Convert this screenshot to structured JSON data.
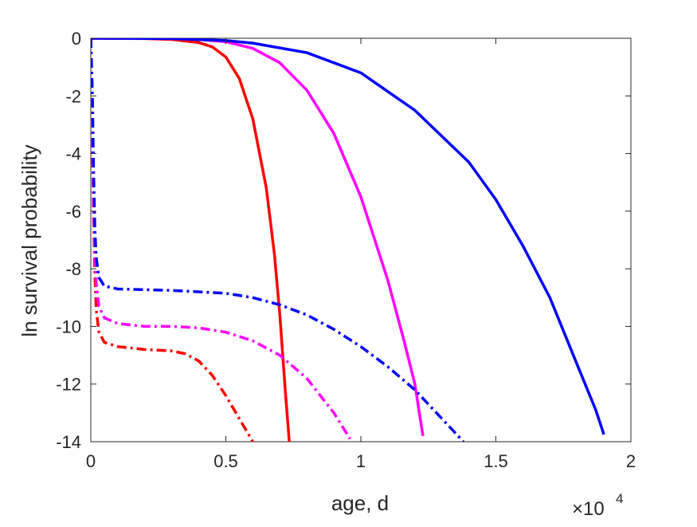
{
  "chart_data": {
    "type": "line",
    "xlabel": "age, d",
    "ylabel": "ln survival probability",
    "xlim": [
      0,
      20000
    ],
    "ylim": [
      -14,
      0
    ],
    "x_exponent_label": {
      "base": "×10",
      "power": "4"
    },
    "xticks": [
      0,
      5000,
      10000,
      15000,
      20000
    ],
    "xtick_labels": [
      "0",
      "0.5",
      "1",
      "1.5",
      "2"
    ],
    "yticks": [
      0,
      -2,
      -4,
      -6,
      -8,
      -10,
      -12,
      -14
    ],
    "ytick_labels": [
      "0",
      "-2",
      "-4",
      "-6",
      "-8",
      "-10",
      "-12",
      "-14"
    ],
    "grid": false,
    "legend": "none",
    "series": [
      {
        "color": "#ff0000",
        "style": "solid",
        "points": [
          [
            0,
            0
          ],
          [
            2000,
            -0.01
          ],
          [
            3000,
            -0.04
          ],
          [
            4000,
            -0.15
          ],
          [
            4500,
            -0.3
          ],
          [
            5000,
            -0.65
          ],
          [
            5500,
            -1.4
          ],
          [
            6000,
            -2.8
          ],
          [
            6500,
            -5.2
          ],
          [
            6800,
            -7.5
          ],
          [
            7000,
            -9.6
          ],
          [
            7200,
            -12.2
          ],
          [
            7350,
            -14
          ]
        ]
      },
      {
        "color": "#ff00ff",
        "style": "solid",
        "points": [
          [
            0,
            0
          ],
          [
            3000,
            -0.01
          ],
          [
            4000,
            -0.04
          ],
          [
            5000,
            -0.12
          ],
          [
            6000,
            -0.35
          ],
          [
            7000,
            -0.85
          ],
          [
            8000,
            -1.8
          ],
          [
            9000,
            -3.3
          ],
          [
            10000,
            -5.5
          ],
          [
            11000,
            -8.4
          ],
          [
            11600,
            -10.5
          ],
          [
            12000,
            -12.0
          ],
          [
            12300,
            -13.8
          ]
        ]
      },
      {
        "color": "#0000ff",
        "style": "solid",
        "points": [
          [
            0,
            0
          ],
          [
            3000,
            -0.01
          ],
          [
            5000,
            -0.08
          ],
          [
            6000,
            -0.17
          ],
          [
            8000,
            -0.5
          ],
          [
            10000,
            -1.2
          ],
          [
            12000,
            -2.5
          ],
          [
            14000,
            -4.3
          ],
          [
            15000,
            -5.6
          ],
          [
            16000,
            -7.2
          ],
          [
            17000,
            -9.0
          ],
          [
            18000,
            -11.3
          ],
          [
            18700,
            -12.9
          ],
          [
            19000,
            -13.75
          ]
        ]
      },
      {
        "color": "#ff0000",
        "style": "dashdot",
        "points": [
          [
            0,
            0
          ],
          [
            50,
            -3
          ],
          [
            100,
            -6
          ],
          [
            150,
            -8.2
          ],
          [
            200,
            -9.4
          ],
          [
            300,
            -10.2
          ],
          [
            500,
            -10.55
          ],
          [
            1000,
            -10.7
          ],
          [
            2000,
            -10.8
          ],
          [
            3000,
            -10.85
          ],
          [
            3500,
            -10.95
          ],
          [
            4000,
            -11.2
          ],
          [
            4500,
            -11.7
          ],
          [
            5000,
            -12.4
          ],
          [
            5500,
            -13.2
          ],
          [
            6000,
            -14
          ]
        ]
      },
      {
        "color": "#ff00ff",
        "style": "dashdot",
        "points": [
          [
            0,
            0
          ],
          [
            50,
            -3
          ],
          [
            100,
            -5.5
          ],
          [
            150,
            -7.3
          ],
          [
            200,
            -8.5
          ],
          [
            300,
            -9.3
          ],
          [
            500,
            -9.7
          ],
          [
            1000,
            -9.9
          ],
          [
            2000,
            -10.0
          ],
          [
            3000,
            -10.0
          ],
          [
            4000,
            -10.05
          ],
          [
            5000,
            -10.2
          ],
          [
            6000,
            -10.5
          ],
          [
            7000,
            -11.0
          ],
          [
            8000,
            -11.8
          ],
          [
            9000,
            -13.0
          ],
          [
            9600,
            -13.9
          ]
        ]
      },
      {
        "color": "#0000ff",
        "style": "dashdot",
        "points": [
          [
            0,
            0
          ],
          [
            60,
            -2
          ],
          [
            100,
            -4.5
          ],
          [
            150,
            -6.6
          ],
          [
            200,
            -7.6
          ],
          [
            300,
            -8.3
          ],
          [
            500,
            -8.6
          ],
          [
            1000,
            -8.7
          ],
          [
            3000,
            -8.75
          ],
          [
            5000,
            -8.85
          ],
          [
            6000,
            -9.0
          ],
          [
            7000,
            -9.25
          ],
          [
            8000,
            -9.6
          ],
          [
            9000,
            -10.1
          ],
          [
            10000,
            -10.7
          ],
          [
            11000,
            -11.4
          ],
          [
            12000,
            -12.2
          ],
          [
            13000,
            -13.2
          ],
          [
            13800,
            -14
          ]
        ]
      }
    ]
  }
}
